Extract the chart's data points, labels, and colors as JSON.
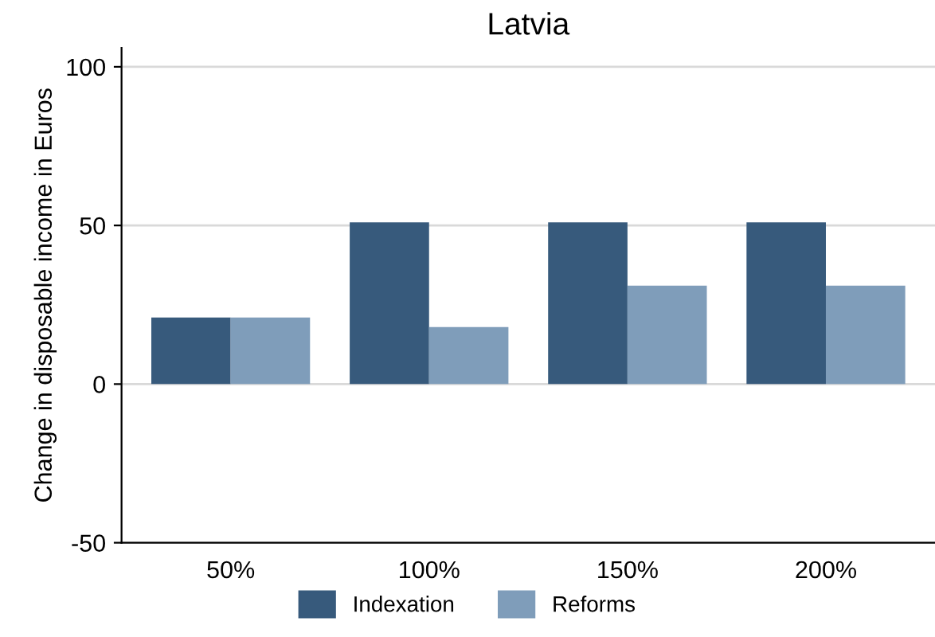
{
  "chart_data": {
    "type": "bar",
    "title": "Latvia",
    "ylabel": "Change in disposable income in Euros",
    "categories": [
      "50%",
      "100%",
      "150%",
      "200%"
    ],
    "series": [
      {
        "name": "Indexation",
        "color": "#375a7c",
        "values": [
          21,
          51,
          51,
          51
        ]
      },
      {
        "name": "Reforms",
        "color": "#7f9dba",
        "values": [
          21,
          18,
          31,
          31
        ]
      }
    ],
    "ylim": [
      -50,
      106
    ],
    "yticks": [
      -50,
      0,
      50,
      100
    ],
    "grid": "y",
    "legend": "bottom"
  }
}
